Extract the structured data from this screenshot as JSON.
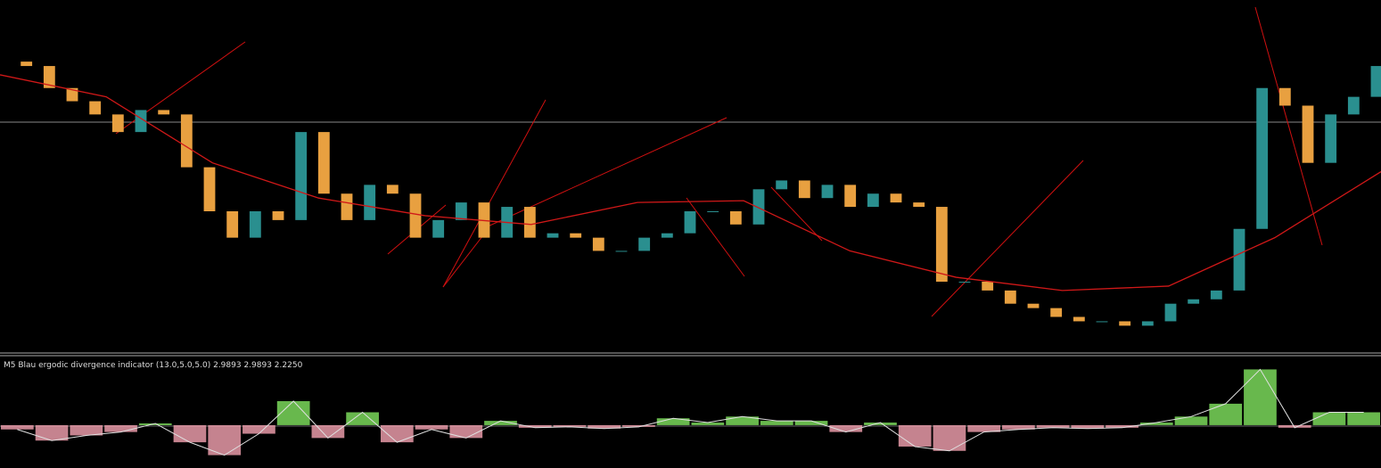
{
  "price_panel": {
    "ylim": [
      0,
      400
    ],
    "close": [
      330,
      325,
      300,
      285,
      270,
      250,
      275,
      270,
      210,
      160,
      130,
      160,
      150,
      250,
      180,
      150,
      190,
      180,
      130,
      150,
      170,
      130,
      165,
      130,
      135,
      130,
      115,
      115,
      130,
      135,
      160,
      160,
      145,
      185,
      195,
      175,
      190,
      165,
      180,
      170,
      165,
      80,
      80,
      70,
      55,
      50,
      40,
      35,
      35,
      30,
      35,
      55,
      60,
      70,
      140,
      300,
      280,
      215,
      270,
      290,
      325
    ],
    "moving_average": [
      315,
      290,
      215,
      175,
      155,
      145,
      170,
      172,
      115,
      85,
      70,
      75,
      130,
      205
    ]
  },
  "indicator_panel": {
    "label": "M5 Blau ergodic divergence indicator (13.0,5.0,5.0) 2.9893 2.9893 2.2250",
    "ylim": [
      -50,
      80
    ],
    "histogram": [
      -5,
      -18,
      -12,
      -8,
      2,
      -20,
      -35,
      -10,
      28,
      -15,
      15,
      -20,
      -5,
      -15,
      5,
      -3,
      -2,
      -4,
      -2,
      8,
      3,
      10,
      5,
      5,
      -8,
      3,
      -25,
      -30,
      -8,
      -5,
      -3,
      -4,
      -3,
      3,
      10,
      25,
      65,
      -3,
      15,
      15
    ]
  }
}
